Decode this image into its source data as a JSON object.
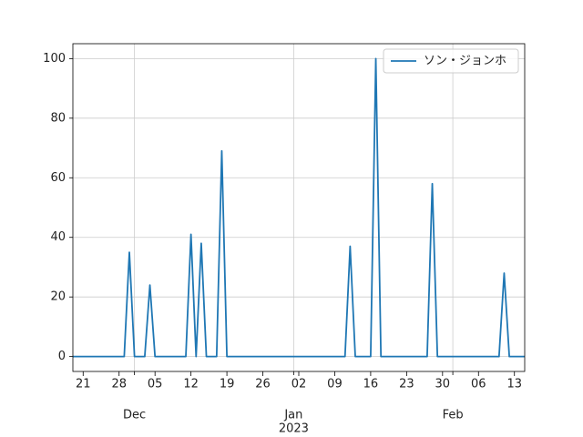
{
  "chart_data": {
    "type": "line",
    "x": [
      "2022-11-19",
      "2022-11-20",
      "2022-11-21",
      "2022-11-22",
      "2022-11-23",
      "2022-11-24",
      "2022-11-25",
      "2022-11-26",
      "2022-11-27",
      "2022-11-28",
      "2022-11-29",
      "2022-11-30",
      "2022-12-01",
      "2022-12-02",
      "2022-12-03",
      "2022-12-04",
      "2022-12-05",
      "2022-12-06",
      "2022-12-07",
      "2022-12-08",
      "2022-12-09",
      "2022-12-10",
      "2022-12-11",
      "2022-12-12",
      "2022-12-13",
      "2022-12-14",
      "2022-12-15",
      "2022-12-16",
      "2022-12-17",
      "2022-12-18",
      "2022-12-19",
      "2022-12-20",
      "2022-12-21",
      "2022-12-22",
      "2022-12-23",
      "2022-12-24",
      "2022-12-25",
      "2022-12-26",
      "2022-12-27",
      "2022-12-28",
      "2022-12-29",
      "2022-12-30",
      "2022-12-31",
      "2023-01-01",
      "2023-01-02",
      "2023-01-03",
      "2023-01-04",
      "2023-01-05",
      "2023-01-06",
      "2023-01-07",
      "2023-01-08",
      "2023-01-09",
      "2023-01-10",
      "2023-01-11",
      "2023-01-12",
      "2023-01-13",
      "2023-01-14",
      "2023-01-15",
      "2023-01-16",
      "2023-01-17",
      "2023-01-18",
      "2023-01-19",
      "2023-01-20",
      "2023-01-21",
      "2023-01-22",
      "2023-01-23",
      "2023-01-24",
      "2023-01-25",
      "2023-01-26",
      "2023-01-27",
      "2023-01-28",
      "2023-01-29",
      "2023-01-30",
      "2023-01-31",
      "2023-02-01",
      "2023-02-02",
      "2023-02-03",
      "2023-02-04",
      "2023-02-05",
      "2023-02-06",
      "2023-02-07",
      "2023-02-08",
      "2023-02-09",
      "2023-02-10",
      "2023-02-11",
      "2023-02-12",
      "2023-02-13",
      "2023-02-14",
      "2023-02-15"
    ],
    "series": [
      {
        "name": "ソン・ジョンホ",
        "color": "#1f77b4",
        "values": [
          0,
          0,
          0,
          0,
          0,
          0,
          0,
          0,
          0,
          0,
          0,
          35,
          0,
          0,
          0,
          24,
          0,
          0,
          0,
          0,
          0,
          0,
          0,
          41,
          0,
          38,
          0,
          0,
          0,
          69,
          0,
          0,
          0,
          0,
          0,
          0,
          0,
          0,
          0,
          0,
          0,
          0,
          0,
          0,
          0,
          0,
          0,
          0,
          0,
          0,
          0,
          0,
          0,
          0,
          37,
          0,
          0,
          0,
          0,
          100,
          0,
          0,
          0,
          0,
          0,
          0,
          0,
          0,
          0,
          0,
          58,
          0,
          0,
          0,
          0,
          0,
          0,
          0,
          0,
          0,
          0,
          0,
          0,
          0,
          28,
          0,
          0,
          0,
          0
        ]
      }
    ],
    "xlim": [
      "2022-11-19",
      "2023-02-15"
    ],
    "xticks": [
      {
        "value": "2022-11-21",
        "label": "21"
      },
      {
        "value": "2022-11-28",
        "label": "28"
      },
      {
        "value": "2022-12-05",
        "label": "05"
      },
      {
        "value": "2022-12-12",
        "label": "12"
      },
      {
        "value": "2022-12-19",
        "label": "19"
      },
      {
        "value": "2022-12-26",
        "label": "26"
      },
      {
        "value": "2023-01-02",
        "label": "02"
      },
      {
        "value": "2023-01-09",
        "label": "09"
      },
      {
        "value": "2023-01-16",
        "label": "16"
      },
      {
        "value": "2023-01-23",
        "label": "23"
      },
      {
        "value": "2023-01-30",
        "label": "30"
      },
      {
        "value": "2023-02-06",
        "label": "06"
      },
      {
        "value": "2023-02-13",
        "label": "13"
      }
    ],
    "xmonth_ticks": [
      {
        "value": "2022-12-01",
        "label": "Dec"
      },
      {
        "value": "2023-01-01",
        "label": "Jan",
        "year": "2023"
      },
      {
        "value": "2023-02-01",
        "label": "Feb"
      }
    ],
    "ylim": [
      -5,
      105
    ],
    "yticks": [
      0,
      20,
      40,
      60,
      80,
      100
    ],
    "grid": true,
    "legend": "upper right"
  }
}
